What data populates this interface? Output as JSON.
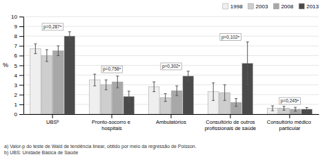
{
  "chart_data": {
    "type": "bar",
    "ylabel": "%",
    "categories": [
      "UBSᵇ",
      "Pronto-socorro e hospitais",
      "Ambulatórios",
      "Consultório de outros\nprofissionais de saúde",
      "Consultório médico particular"
    ],
    "series": [
      {
        "name": "1998",
        "color": "#efefef",
        "values": [
          6.7,
          3.5,
          2.8,
          2.3,
          0.6
        ],
        "errors": [
          0.5,
          0.6,
          0.5,
          0.9,
          0.25
        ]
      },
      {
        "name": "2003",
        "color": "#cecece",
        "values": [
          6.0,
          3.0,
          1.7,
          2.2,
          0.6
        ],
        "errors": [
          0.6,
          0.5,
          0.4,
          0.8,
          0.2
        ]
      },
      {
        "name": "2008",
        "color": "#a8a8a8",
        "values": [
          6.5,
          3.3,
          2.4,
          1.2,
          0.5
        ],
        "errors": [
          0.5,
          0.6,
          0.5,
          0.4,
          0.2
        ]
      },
      {
        "name": "2013",
        "color": "#4a4a4a",
        "values": [
          8.0,
          1.8,
          3.9,
          5.2,
          0.5
        ],
        "errors": [
          0.45,
          0.55,
          0.5,
          2.2,
          0.18
        ]
      }
    ],
    "annotations": [
      "p=0,287ᵃ",
      "p=0,758ᵃ",
      "p=0,302ᵃ",
      "p=0,102ᵃ",
      "p=0,245ᵃ"
    ],
    "footnotes": [
      "a) Valor-p do teste de Wald de tendência linear, obtido por meio da regressão de Poisson.",
      "b) UBS: Unidade Básica de Saúde"
    ],
    "ylim": [
      0,
      10
    ],
    "yticks": [
      0,
      1,
      2,
      3,
      4,
      5,
      6,
      7,
      8,
      9,
      10
    ],
    "grid": true,
    "legend": "top-right"
  }
}
